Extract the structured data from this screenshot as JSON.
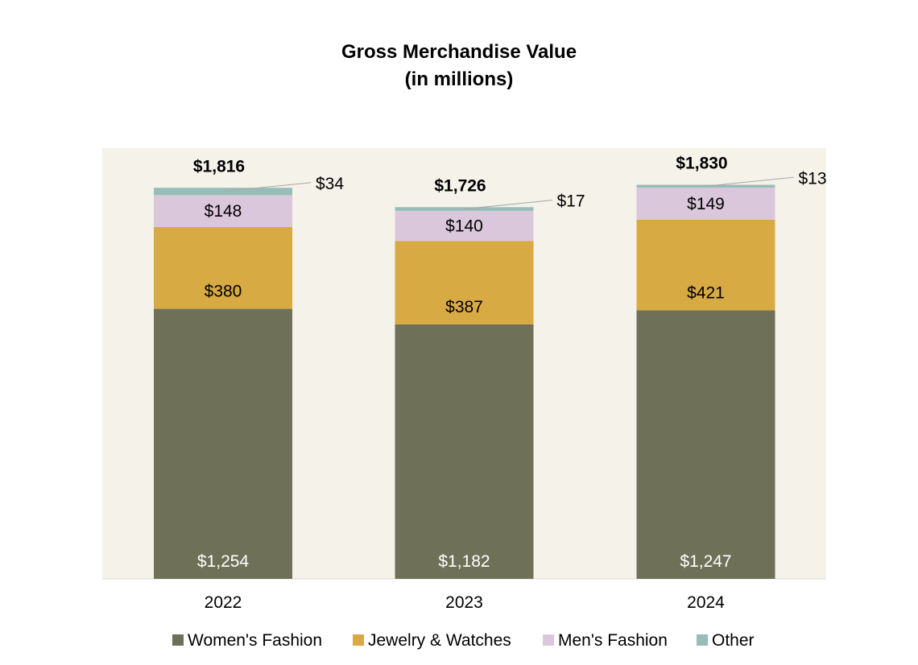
{
  "chart_data": {
    "type": "bar",
    "stacked": true,
    "title": "Gross Merchandise Value",
    "subtitle": "(in millions)",
    "categories": [
      "2022",
      "2023",
      "2024"
    ],
    "series": [
      {
        "name": "Women's Fashion",
        "values": [
          1254,
          1182,
          1247
        ],
        "labels": [
          "$1,254",
          "$1,182",
          "$1,247"
        ],
        "color": "#6f7058"
      },
      {
        "name": "Jewelry & Watches",
        "values": [
          380,
          387,
          421
        ],
        "labels": [
          "$380",
          "$387",
          "$421"
        ],
        "color": "#d8aa44"
      },
      {
        "name": "Men's Fashion",
        "values": [
          148,
          140,
          149
        ],
        "labels": [
          "$148",
          "$140",
          "$149"
        ],
        "color": "#dbc7db"
      },
      {
        "name": "Other",
        "values": [
          34,
          17,
          13
        ],
        "labels": [
          "$34",
          "$17",
          "$13"
        ],
        "color": "#96bdb8"
      }
    ],
    "totals": [
      1816,
      1726,
      1830
    ],
    "total_labels": [
      "$1,816",
      "$1,726",
      "$1,830"
    ],
    "ylim": [
      0,
      2000
    ],
    "grid": false,
    "legend_position": "bottom",
    "plot_background": "#f5f2ea"
  }
}
